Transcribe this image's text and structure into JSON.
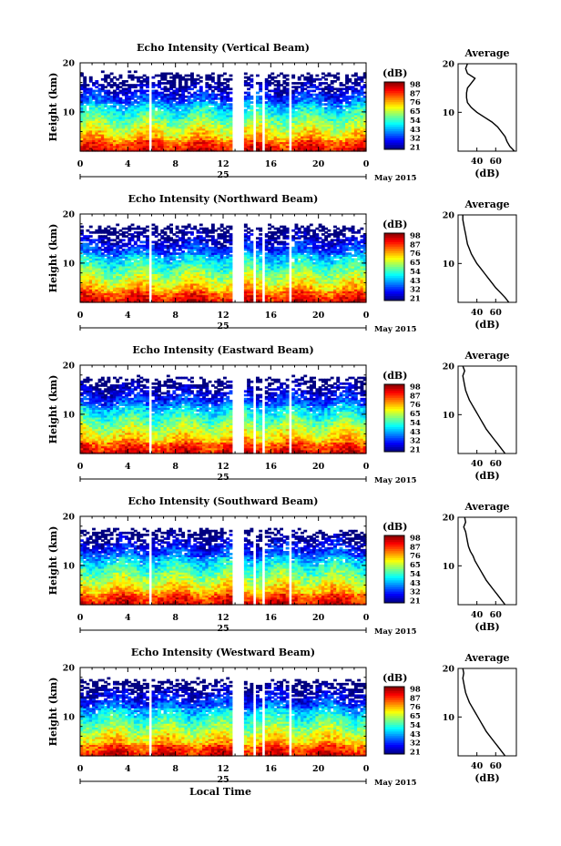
{
  "chart_data": [
    {
      "type": "heatmap",
      "title": "Echo Intensity (Vertical Beam)",
      "ylabel": "Height (km)",
      "ylim": [
        2,
        20
      ],
      "yticks": [
        "10",
        "20"
      ],
      "xticks": [
        "0",
        "4",
        "8",
        "12",
        "16",
        "20",
        "0"
      ],
      "xlim": [
        0,
        24
      ],
      "day_label": "25",
      "date_label": "May 2015",
      "colorbar_unit": "(dB)",
      "colorbar_ticks": [
        "98",
        "87",
        "76",
        "65",
        "54",
        "43",
        "32",
        "21"
      ],
      "avg_title": "Average",
      "avg_xlabel": "(dB)",
      "avg_xticks": [
        "40",
        "60"
      ],
      "avg_yticks": [
        "10",
        "20"
      ],
      "average_profile": {
        "height": [
          2,
          3,
          4,
          5,
          6,
          7,
          8,
          9,
          10,
          11,
          12,
          13,
          14,
          15,
          16,
          17,
          18,
          19,
          20
        ],
        "db": [
          80,
          75,
          72,
          70,
          66,
          62,
          56,
          48,
          40,
          34,
          30,
          29,
          29,
          30,
          34,
          38,
          30,
          28,
          30
        ]
      }
    },
    {
      "type": "heatmap",
      "title": "Echo Intensity (Northward Beam)",
      "ylabel": "Height (km)",
      "ylim": [
        2,
        20
      ],
      "yticks": [
        "10",
        "20"
      ],
      "xticks": [
        "0",
        "4",
        "8",
        "12",
        "16",
        "20",
        "0"
      ],
      "xlim": [
        0,
        24
      ],
      "day_label": "25",
      "date_label": "May 2015",
      "colorbar_unit": "(dB)",
      "colorbar_ticks": [
        "98",
        "87",
        "76",
        "65",
        "54",
        "43",
        "32",
        "21"
      ],
      "avg_title": "Average",
      "avg_xlabel": "(dB)",
      "avg_xticks": [
        "40",
        "60"
      ],
      "avg_yticks": [
        "10",
        "20"
      ],
      "average_profile": {
        "height": [
          2,
          3,
          4,
          5,
          6,
          7,
          8,
          9,
          10,
          11,
          12,
          13,
          14,
          15,
          16,
          17,
          18,
          19,
          20
        ],
        "db": [
          74,
          70,
          65,
          60,
          56,
          52,
          48,
          44,
          40,
          37,
          34,
          32,
          30,
          29,
          28,
          27,
          26,
          25,
          25
        ]
      }
    },
    {
      "type": "heatmap",
      "title": "Echo Intensity (Eastward Beam)",
      "ylabel": "Height (km)",
      "ylim": [
        2,
        20
      ],
      "yticks": [
        "10",
        "20"
      ],
      "xticks": [
        "0",
        "4",
        "8",
        "12",
        "16",
        "20",
        "0"
      ],
      "xlim": [
        0,
        24
      ],
      "day_label": "25",
      "date_label": "May 2015",
      "colorbar_unit": "(dB)",
      "colorbar_ticks": [
        "98",
        "87",
        "76",
        "65",
        "54",
        "43",
        "32",
        "21"
      ],
      "avg_title": "Average",
      "avg_xlabel": "(dB)",
      "avg_xticks": [
        "40",
        "60"
      ],
      "avg_yticks": [
        "10",
        "20"
      ],
      "average_profile": {
        "height": [
          2,
          3,
          4,
          5,
          6,
          7,
          8,
          9,
          10,
          11,
          12,
          13,
          14,
          15,
          16,
          17,
          18,
          19,
          20
        ],
        "db": [
          70,
          66,
          62,
          58,
          54,
          50,
          47,
          44,
          41,
          38,
          35,
          32,
          30,
          28,
          27,
          26,
          25,
          27,
          25
        ]
      }
    },
    {
      "type": "heatmap",
      "title": "Echo Intensity (Southward Beam)",
      "ylabel": "Height (km)",
      "ylim": [
        2,
        20
      ],
      "yticks": [
        "10",
        "20"
      ],
      "xticks": [
        "0",
        "4",
        "8",
        "12",
        "16",
        "20",
        "0"
      ],
      "xlim": [
        0,
        24
      ],
      "day_label": "25",
      "date_label": "May 2015",
      "colorbar_unit": "(dB)",
      "colorbar_ticks": [
        "98",
        "87",
        "76",
        "65",
        "54",
        "43",
        "32",
        "21"
      ],
      "avg_title": "Average",
      "avg_xlabel": "(dB)",
      "avg_xticks": [
        "40",
        "60"
      ],
      "avg_yticks": [
        "10",
        "20"
      ],
      "average_profile": {
        "height": [
          2,
          3,
          4,
          5,
          6,
          7,
          8,
          9,
          10,
          11,
          12,
          13,
          14,
          15,
          16,
          17,
          18,
          19,
          20
        ],
        "db": [
          70,
          66,
          62,
          58,
          54,
          50,
          47,
          44,
          41,
          38,
          36,
          33,
          31,
          30,
          29,
          28,
          26,
          28,
          27
        ]
      }
    },
    {
      "type": "heatmap",
      "title": "Echo Intensity (Westward Beam)",
      "ylabel": "Height (km)",
      "ylim": [
        2,
        20
      ],
      "yticks": [
        "10",
        "20"
      ],
      "xticks": [
        "0",
        "4",
        "8",
        "12",
        "16",
        "20",
        "0"
      ],
      "xlim": [
        0,
        24
      ],
      "day_label": "25",
      "date_label": "May 2015",
      "colorbar_unit": "(dB)",
      "colorbar_ticks": [
        "98",
        "87",
        "76",
        "65",
        "54",
        "43",
        "32",
        "21"
      ],
      "avg_title": "Average",
      "avg_xlabel": "(dB)",
      "avg_xticks": [
        "40",
        "60"
      ],
      "avg_yticks": [
        "10",
        "20"
      ],
      "xlabel": "Local Time",
      "average_profile": {
        "height": [
          2,
          3,
          4,
          5,
          6,
          7,
          8,
          9,
          10,
          11,
          12,
          13,
          14,
          15,
          16,
          17,
          18,
          19,
          20
        ],
        "db": [
          70,
          66,
          62,
          58,
          54,
          50,
          47,
          44,
          41,
          38,
          35,
          32,
          30,
          28,
          27,
          26,
          25,
          26,
          25
        ]
      }
    }
  ]
}
